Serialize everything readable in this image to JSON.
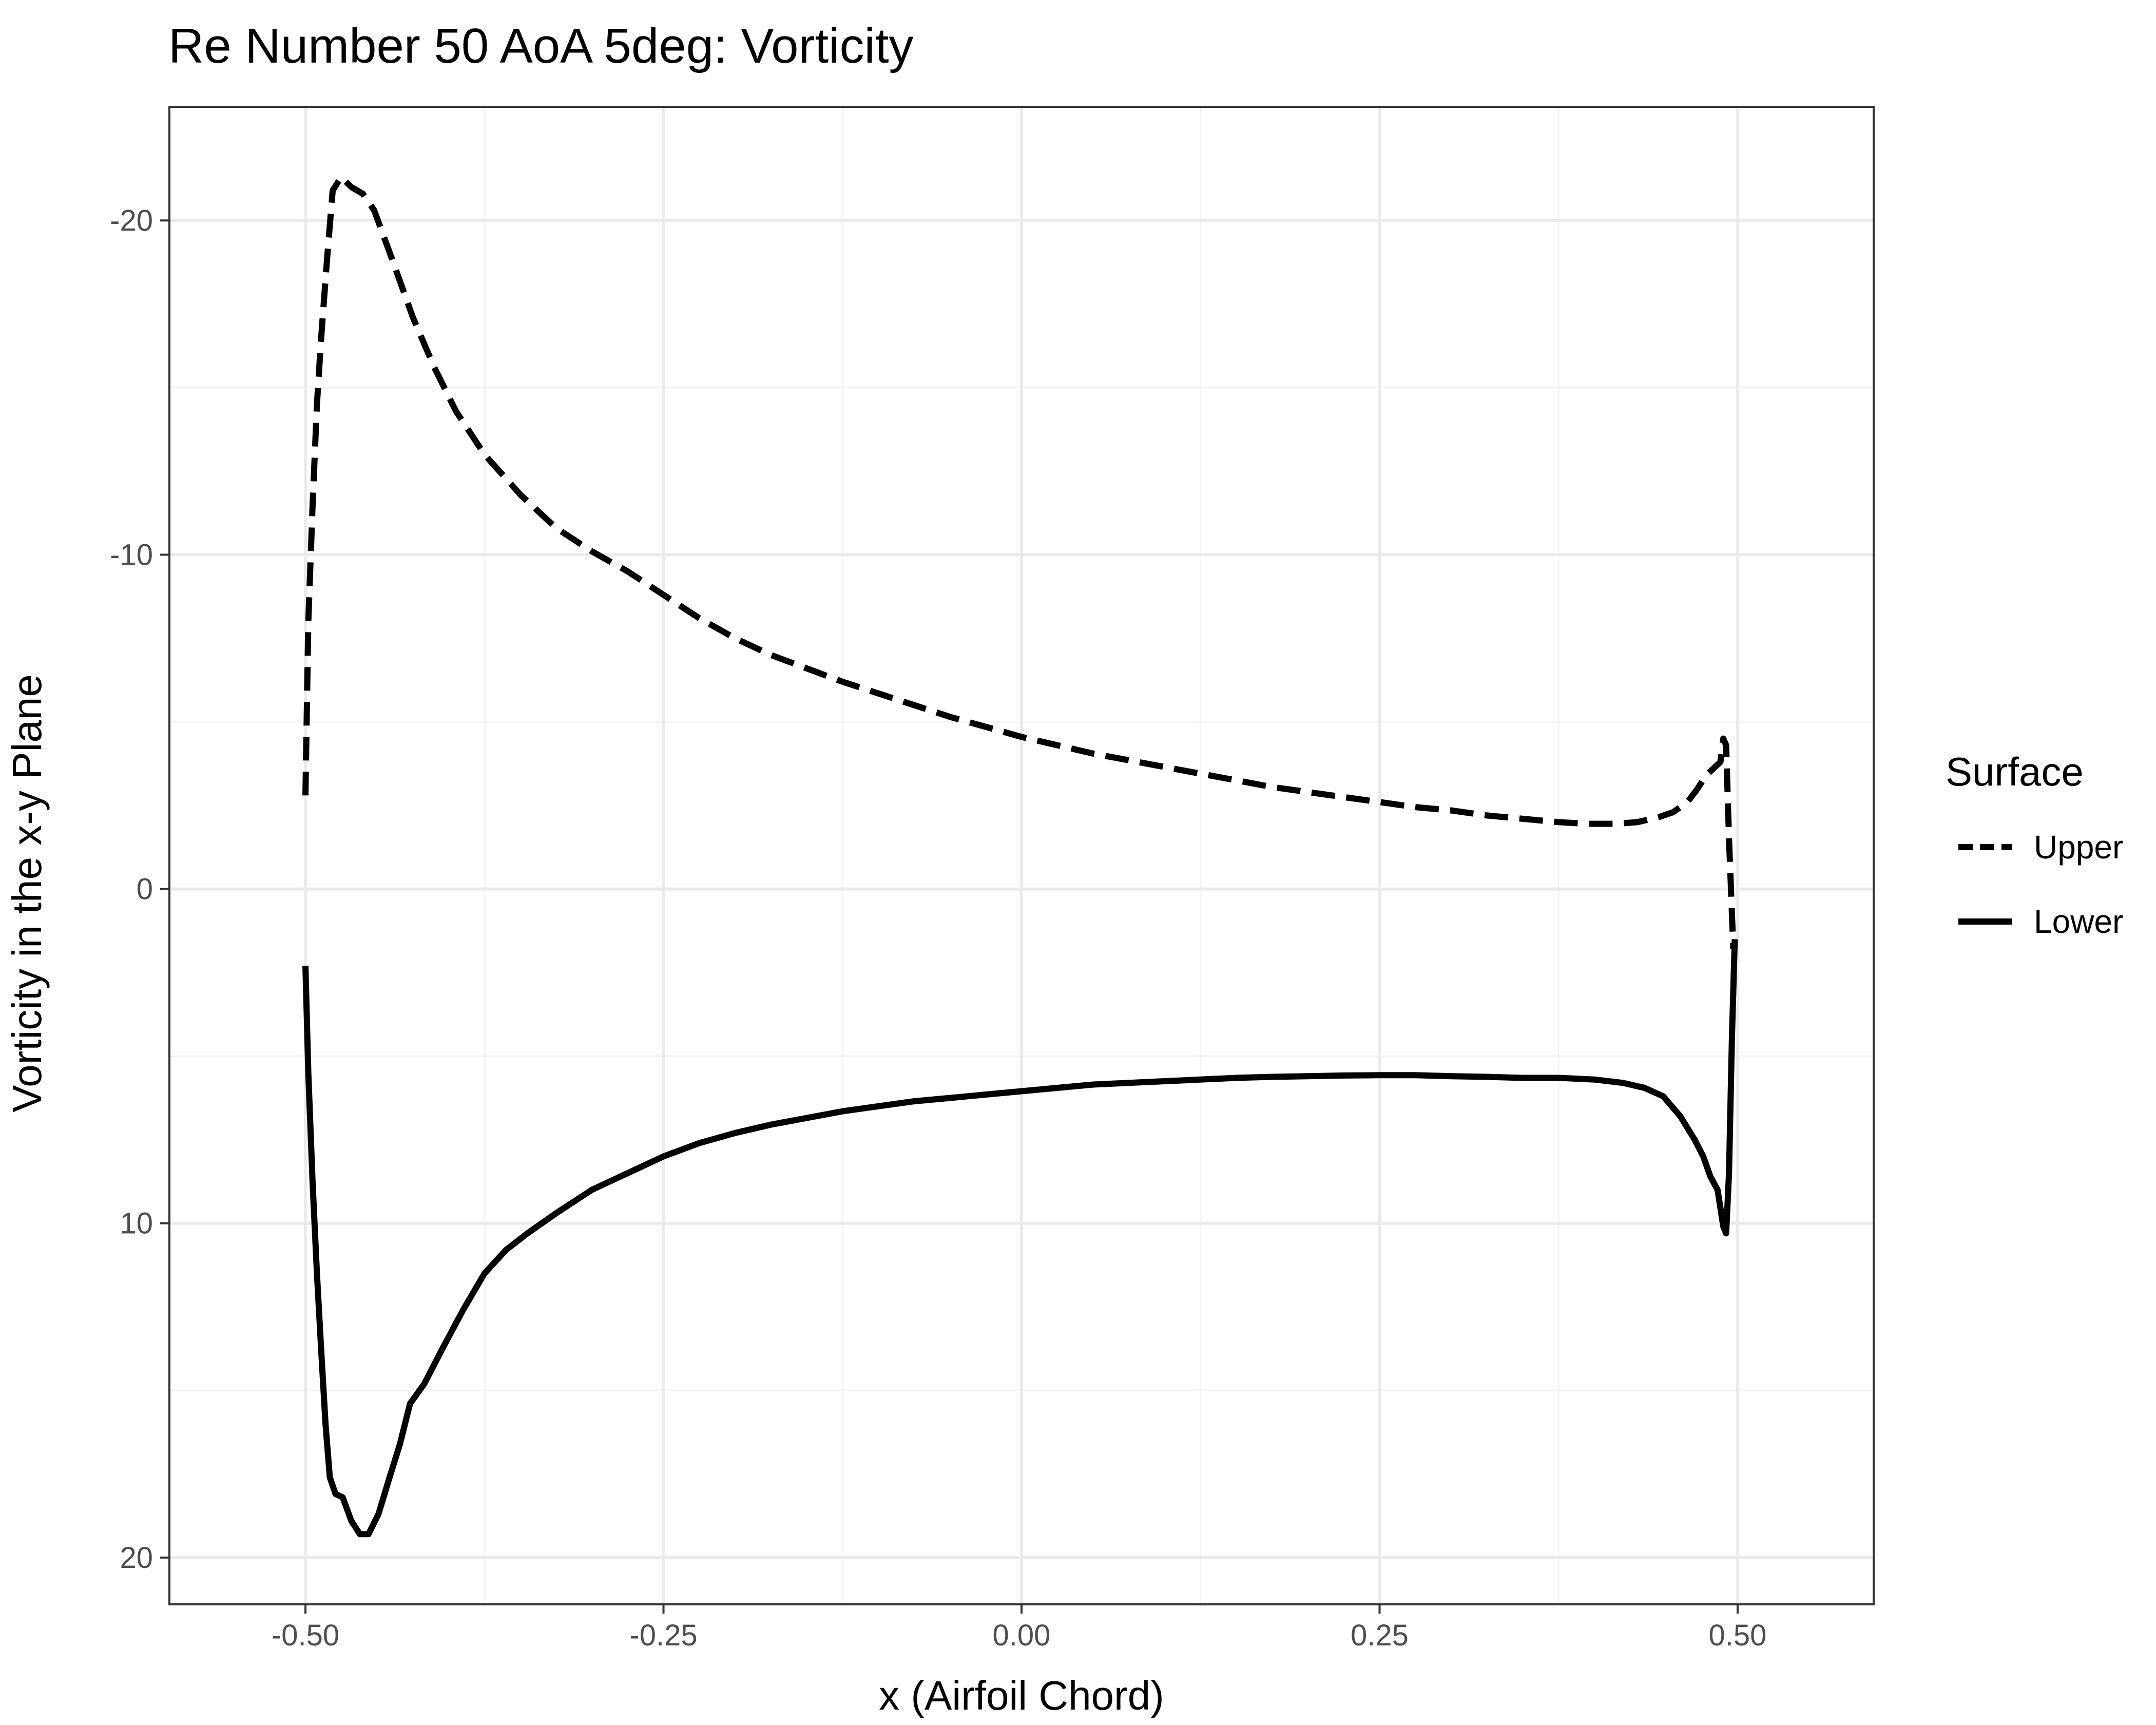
{
  "chart_data": {
    "type": "line",
    "title": "Re Number 50 AoA 5deg: Vorticity",
    "xlabel": "x (Airfoil Chord)",
    "ylabel": "Vorticity in the x-y Plane",
    "xlim": [
      -0.595,
      0.595
    ],
    "ylim": [
      -23.4,
      21.4
    ],
    "y_reversed": true,
    "grid": true,
    "legend_position": "right",
    "legend_title": "Surface",
    "x_ticks": [
      -0.5,
      -0.25,
      0.0,
      0.25,
      0.5
    ],
    "x_tick_labels": [
      "-0.50",
      "-0.25",
      "0.00",
      "0.25",
      "0.50"
    ],
    "y_ticks": [
      -20,
      -10,
      0,
      10,
      20
    ],
    "y_tick_labels": [
      "-20",
      "-10",
      "0",
      "10",
      "20"
    ],
    "series": [
      {
        "name": "Upper",
        "style": "dashed",
        "color": "#000000",
        "points": [
          [
            -0.5,
            -2.8
          ],
          [
            -0.498,
            -8.0
          ],
          [
            -0.495,
            -11.5
          ],
          [
            -0.492,
            -14.5
          ],
          [
            -0.489,
            -16.5
          ],
          [
            -0.485,
            -18.8
          ],
          [
            -0.481,
            -20.9
          ],
          [
            -0.475,
            -21.3
          ],
          [
            -0.468,
            -21.0
          ],
          [
            -0.46,
            -20.8
          ],
          [
            -0.452,
            -20.3
          ],
          [
            -0.44,
            -18.9
          ],
          [
            -0.425,
            -17.1
          ],
          [
            -0.41,
            -15.6
          ],
          [
            -0.395,
            -14.3
          ],
          [
            -0.375,
            -13.0
          ],
          [
            -0.35,
            -11.8
          ],
          [
            -0.325,
            -10.8
          ],
          [
            -0.3,
            -10.1
          ],
          [
            -0.275,
            -9.5
          ],
          [
            -0.25,
            -8.8
          ],
          [
            -0.225,
            -8.1
          ],
          [
            -0.2,
            -7.5
          ],
          [
            -0.175,
            -7.0
          ],
          [
            -0.15,
            -6.6
          ],
          [
            -0.125,
            -6.2
          ],
          [
            -0.1,
            -5.85
          ],
          [
            -0.075,
            -5.5
          ],
          [
            -0.05,
            -5.15
          ],
          [
            -0.025,
            -4.85
          ],
          [
            0.0,
            -4.55
          ],
          [
            0.025,
            -4.3
          ],
          [
            0.05,
            -4.05
          ],
          [
            0.075,
            -3.85
          ],
          [
            0.1,
            -3.65
          ],
          [
            0.125,
            -3.45
          ],
          [
            0.15,
            -3.25
          ],
          [
            0.175,
            -3.05
          ],
          [
            0.2,
            -2.9
          ],
          [
            0.225,
            -2.75
          ],
          [
            0.25,
            -2.6
          ],
          [
            0.275,
            -2.45
          ],
          [
            0.3,
            -2.35
          ],
          [
            0.325,
            -2.2
          ],
          [
            0.35,
            -2.1
          ],
          [
            0.375,
            -2.0
          ],
          [
            0.395,
            -1.95
          ],
          [
            0.415,
            -1.95
          ],
          [
            0.43,
            -2.0
          ],
          [
            0.445,
            -2.15
          ],
          [
            0.455,
            -2.3
          ],
          [
            0.465,
            -2.6
          ],
          [
            0.472,
            -3.0
          ],
          [
            0.478,
            -3.4
          ],
          [
            0.483,
            -3.6
          ],
          [
            0.488,
            -3.8
          ],
          [
            0.49,
            -4.5
          ],
          [
            0.492,
            -4.3
          ],
          [
            0.494,
            -1.5
          ],
          [
            0.497,
            1.8
          ]
        ]
      },
      {
        "name": "Lower",
        "style": "solid",
        "color": "#000000",
        "points": [
          [
            -0.5,
            2.3
          ],
          [
            -0.498,
            5.5
          ],
          [
            -0.495,
            8.8
          ],
          [
            -0.492,
            11.5
          ],
          [
            -0.489,
            13.8
          ],
          [
            -0.486,
            16.0
          ],
          [
            -0.483,
            17.6
          ],
          [
            -0.479,
            18.1
          ],
          [
            -0.474,
            18.2
          ],
          [
            -0.468,
            18.9
          ],
          [
            -0.462,
            19.3
          ],
          [
            -0.456,
            19.3
          ],
          [
            -0.449,
            18.7
          ],
          [
            -0.442,
            17.7
          ],
          [
            -0.434,
            16.6
          ],
          [
            -0.427,
            15.4
          ],
          [
            -0.417,
            14.8
          ],
          [
            -0.405,
            13.8
          ],
          [
            -0.39,
            12.6
          ],
          [
            -0.375,
            11.5
          ],
          [
            -0.36,
            10.8
          ],
          [
            -0.345,
            10.3
          ],
          [
            -0.325,
            9.7
          ],
          [
            -0.3,
            9.0
          ],
          [
            -0.275,
            8.5
          ],
          [
            -0.25,
            8.0
          ],
          [
            -0.225,
            7.6
          ],
          [
            -0.2,
            7.3
          ],
          [
            -0.175,
            7.05
          ],
          [
            -0.15,
            6.85
          ],
          [
            -0.125,
            6.65
          ],
          [
            -0.1,
            6.5
          ],
          [
            -0.075,
            6.35
          ],
          [
            -0.05,
            6.25
          ],
          [
            -0.025,
            6.15
          ],
          [
            0.0,
            6.05
          ],
          [
            0.025,
            5.95
          ],
          [
            0.05,
            5.85
          ],
          [
            0.075,
            5.8
          ],
          [
            0.1,
            5.75
          ],
          [
            0.125,
            5.7
          ],
          [
            0.15,
            5.65
          ],
          [
            0.175,
            5.62
          ],
          [
            0.2,
            5.6
          ],
          [
            0.225,
            5.58
          ],
          [
            0.25,
            5.57
          ],
          [
            0.275,
            5.57
          ],
          [
            0.3,
            5.6
          ],
          [
            0.325,
            5.62
          ],
          [
            0.35,
            5.65
          ],
          [
            0.375,
            5.65
          ],
          [
            0.4,
            5.7
          ],
          [
            0.42,
            5.8
          ],
          [
            0.435,
            5.95
          ],
          [
            0.448,
            6.2
          ],
          [
            0.46,
            6.8
          ],
          [
            0.47,
            7.5
          ],
          [
            0.476,
            8.0
          ],
          [
            0.481,
            8.6
          ],
          [
            0.486,
            9.0
          ],
          [
            0.49,
            10.1
          ],
          [
            0.492,
            10.3
          ],
          [
            0.494,
            8.5
          ],
          [
            0.496,
            4.5
          ],
          [
            0.498,
            1.5
          ]
        ]
      }
    ]
  }
}
